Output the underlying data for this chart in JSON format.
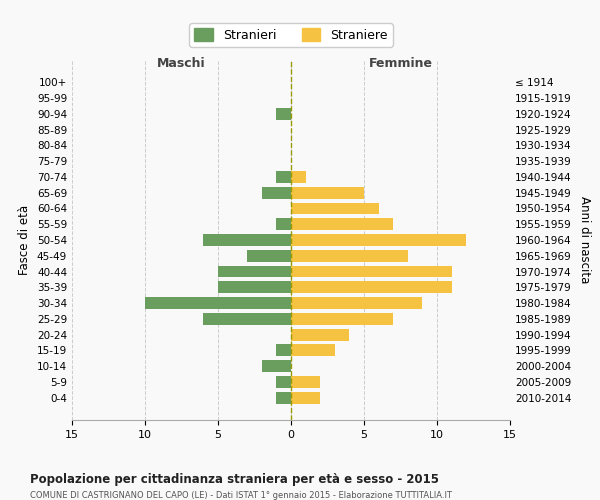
{
  "age_groups": [
    "100+",
    "95-99",
    "90-94",
    "85-89",
    "80-84",
    "75-79",
    "70-74",
    "65-69",
    "60-64",
    "55-59",
    "50-54",
    "45-49",
    "40-44",
    "35-39",
    "30-34",
    "25-29",
    "20-24",
    "15-19",
    "10-14",
    "5-9",
    "0-4"
  ],
  "birth_years": [
    "≤ 1914",
    "1915-1919",
    "1920-1924",
    "1925-1929",
    "1930-1934",
    "1935-1939",
    "1940-1944",
    "1945-1949",
    "1950-1954",
    "1955-1959",
    "1960-1964",
    "1965-1969",
    "1970-1974",
    "1975-1979",
    "1980-1984",
    "1985-1989",
    "1990-1994",
    "1995-1999",
    "2000-2004",
    "2005-2009",
    "2010-2014"
  ],
  "maschi": [
    0,
    0,
    1,
    0,
    0,
    0,
    1,
    2,
    0,
    1,
    6,
    3,
    5,
    5,
    10,
    6,
    0,
    1,
    2,
    1,
    1
  ],
  "femmine": [
    0,
    0,
    0,
    0,
    0,
    0,
    1,
    5,
    6,
    7,
    12,
    8,
    11,
    11,
    9,
    7,
    4,
    3,
    0,
    2,
    2
  ],
  "color_maschi": "#6a9e5e",
  "color_femmine": "#f5c242",
  "title_main": "Popolazione per cittadinanza straniera per età e sesso - 2015",
  "title_sub": "COMUNE DI CASTRIGNANO DEL CAPO (LE) - Dati ISTAT 1° gennaio 2015 - Elaborazione TUTTITALIA.IT",
  "xlabel_left": "Maschi",
  "xlabel_right": "Femmine",
  "ylabel_left": "Fasce di età",
  "ylabel_right": "Anni di nascita",
  "legend_male": "Stranieri",
  "legend_female": "Straniere",
  "xlim": 15,
  "background_color": "#f9f9f9",
  "grid_color": "#cccccc"
}
